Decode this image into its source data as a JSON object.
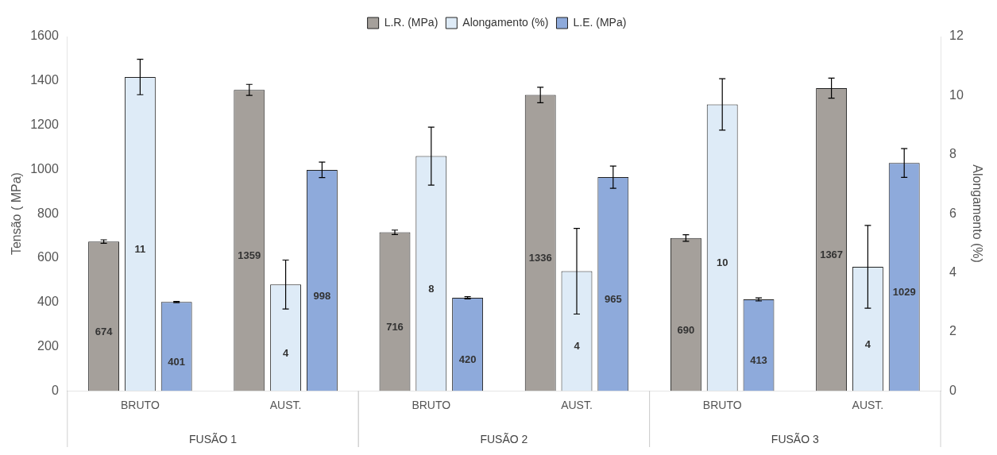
{
  "chart_data": {
    "type": "bar",
    "ylabel": "Tensão ( MPa)",
    "y2label": "Alongamento (%)",
    "categories": [
      "BRUTO",
      "AUST.",
      "BRUTO",
      "AUST.",
      "BRUTO",
      "AUST."
    ],
    "annotations": [
      "FUSÃO 1",
      "FUSÃO 2",
      "FUSÃO 3"
    ],
    "ylim": [
      0,
      1600
    ],
    "yticks": [
      0,
      200,
      400,
      600,
      800,
      1000,
      1200,
      1400,
      1600
    ],
    "y2lim": [
      0,
      12
    ],
    "y2ticks": [
      0,
      2,
      4,
      6,
      8,
      10,
      12
    ],
    "legend": "top",
    "series": [
      {
        "name": "L.R. (MPa)",
        "color": "#a5a09b",
        "values": [
          674,
          1359,
          716,
          1336,
          690,
          1367
        ],
        "errors": [
          8,
          25,
          10,
          35,
          15,
          45
        ],
        "value_labels": [
          "674",
          "1359",
          "716",
          "1336",
          "690",
          "1367"
        ]
      },
      {
        "name": "Alongamento (%)",
        "color": "#deebf7",
        "axis": "y2",
        "values": [
          10.63,
          3.6,
          7.95,
          4.05,
          9.7,
          4.2
        ],
        "errors": [
          0.6,
          0.83,
          0.98,
          1.45,
          0.87,
          1.4
        ],
        "value_labels": [
          "11",
          "4",
          "8",
          "4",
          "10",
          "4"
        ]
      },
      {
        "name": "L.E. (MPa)",
        "color": "#8eaadb",
        "values": [
          401,
          998,
          420,
          965,
          413,
          1029
        ],
        "errors": [
          3,
          35,
          5,
          50,
          7,
          65
        ],
        "value_labels": [
          "401",
          "998",
          "420",
          "965",
          "413",
          "1029"
        ]
      }
    ]
  }
}
